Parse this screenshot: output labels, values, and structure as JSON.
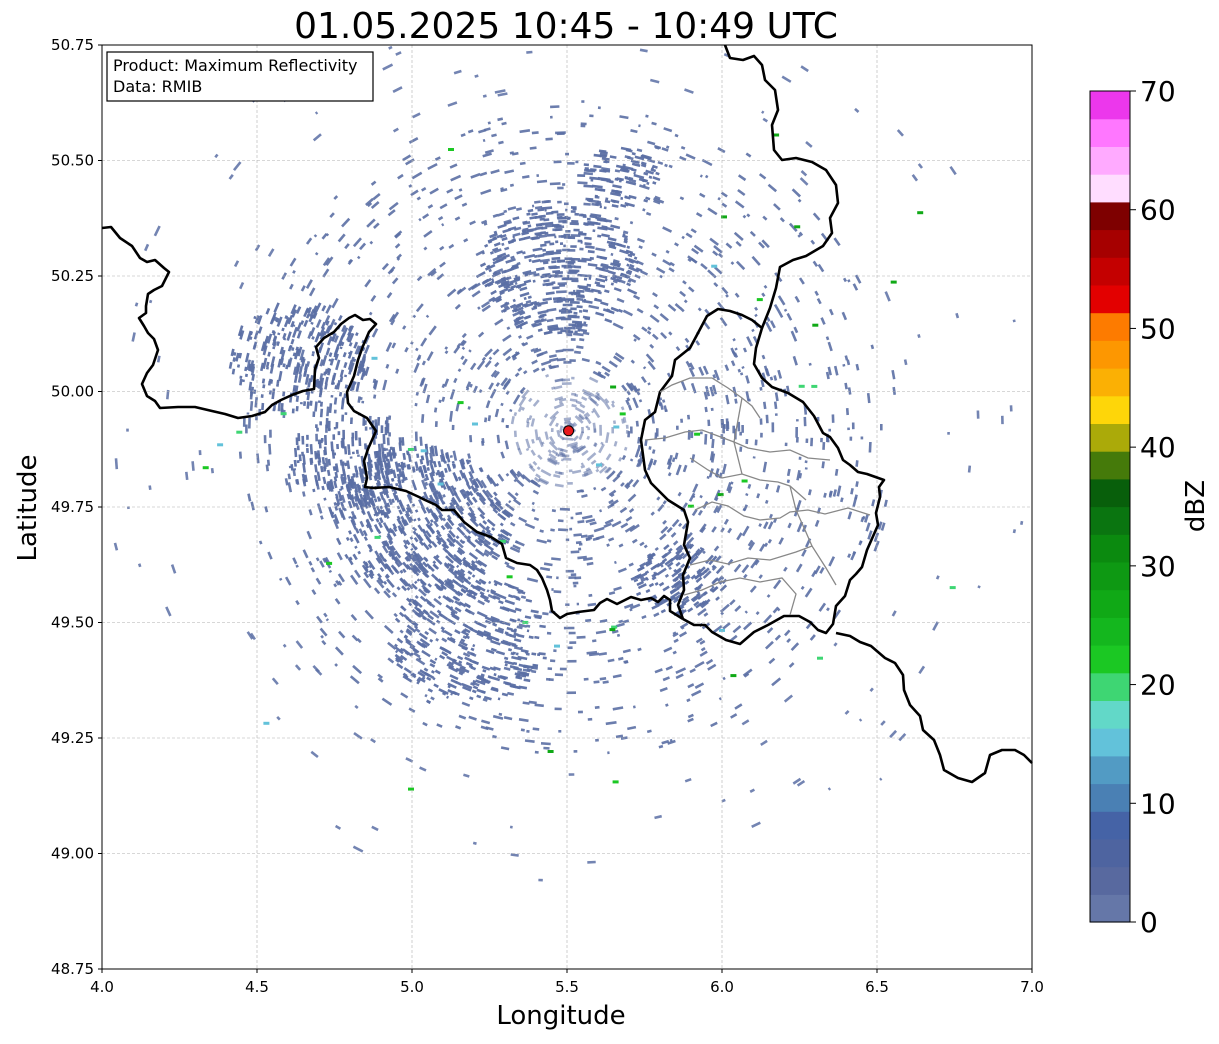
{
  "title": "01.05.2025 10:45 - 10:49 UTC",
  "info_box": {
    "product": "Product: Maximum Reflectivity",
    "source": "Data: RMIB"
  },
  "map": {
    "xlabel": "Longitude",
    "ylabel": "Latitude",
    "xlim": [
      4.0,
      7.0
    ],
    "ylim": [
      48.75,
      50.75
    ],
    "x_ticks": [
      4.0,
      4.5,
      5.0,
      5.5,
      6.0,
      6.5,
      7.0
    ],
    "x_tick_labels": [
      "4.0",
      "4.5",
      "5.0",
      "5.5",
      "6.0",
      "6.5",
      "7.0"
    ],
    "y_ticks": [
      48.75,
      49.0,
      49.25,
      49.5,
      49.75,
      50.0,
      50.25,
      50.5,
      50.75
    ],
    "y_tick_labels": [
      "48.75",
      "49.00",
      "49.25",
      "49.50",
      "49.75",
      "50.00",
      "50.25",
      "50.50",
      "50.75"
    ],
    "grid": true,
    "radar_site": {
      "lon": 5.505,
      "lat": 49.915,
      "color": "#e8191c"
    },
    "echo_color": "#5b6fa4"
  },
  "colorbar": {
    "label": "dBZ",
    "ticks": [
      0,
      10,
      20,
      30,
      40,
      50,
      60,
      70
    ],
    "tick_labels": [
      "0",
      "10",
      "20",
      "30",
      "40",
      "50",
      "60",
      "70"
    ],
    "vmin": 0,
    "vmax": 70,
    "colors": [
      "#6577a8",
      "#58699f",
      "#4e64a0",
      "#4563a6",
      "#4a80b4",
      "#529bc4",
      "#62c2da",
      "#62d8c8",
      "#3ed673",
      "#1bc823",
      "#14b71e",
      "#10a916",
      "#0e9913",
      "#0b8a0f",
      "#0a7510",
      "#085f0b",
      "#457a0a",
      "#abaa09",
      "#fed609",
      "#fbb004",
      "#fd9701",
      "#fd7b00",
      "#e30000",
      "#c40000",
      "#a60000",
      "#7e0000",
      "#ffddff",
      "#ffaaff",
      "#ff77ff",
      "#ec37ec"
    ]
  }
}
